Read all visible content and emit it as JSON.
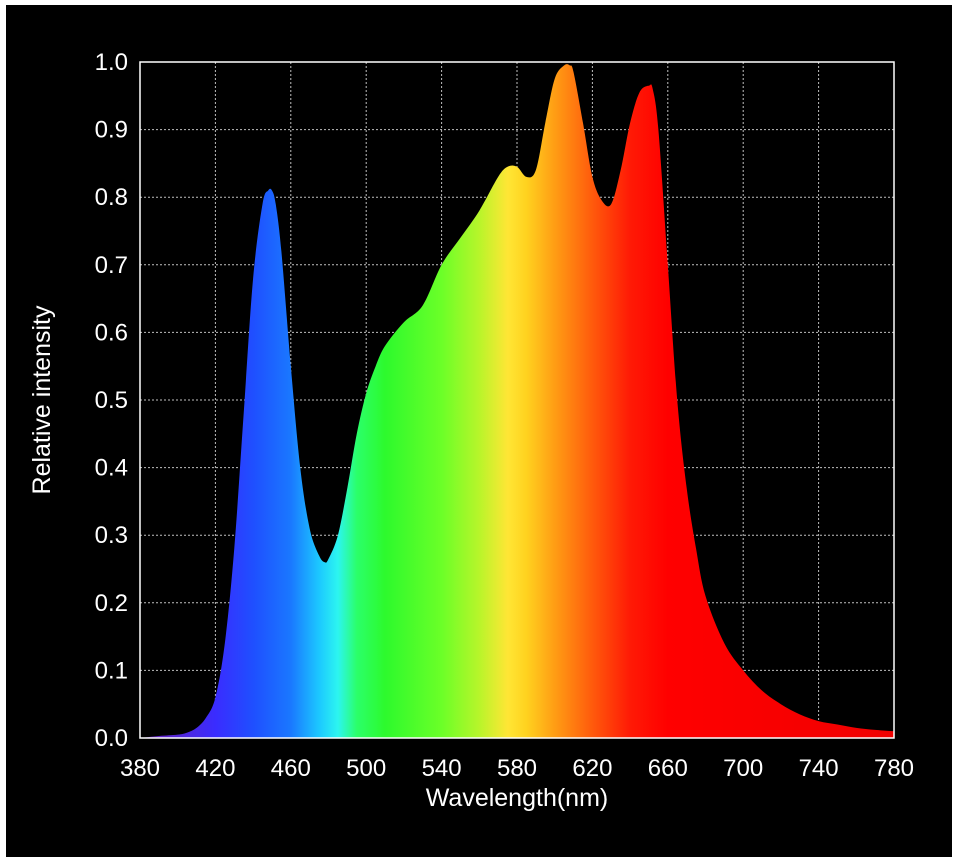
{
  "chart_data": {
    "type": "area",
    "xlabel": "Wavelength(nm)",
    "ylabel": "Relative intensity",
    "xlim": [
      380,
      780
    ],
    "ylim": [
      0,
      1.0
    ],
    "grid": true,
    "x_ticks": [
      "380",
      "420",
      "460",
      "500",
      "540",
      "580",
      "620",
      "660",
      "700",
      "740",
      "780"
    ],
    "y_ticks": [
      "0.0",
      "0.1",
      "0.2",
      "0.3",
      "0.4",
      "0.5",
      "0.6",
      "0.7",
      "0.8",
      "0.9",
      "1.0"
    ],
    "series": [
      {
        "x": [
          380,
          390,
          400,
          405,
          410,
          415,
          420,
          425,
          430,
          435,
          440,
          445,
          448,
          450,
          452,
          455,
          460,
          465,
          470,
          475,
          478,
          480,
          485,
          490,
          495,
          500,
          505,
          510,
          520,
          530,
          540,
          550,
          560,
          570,
          575,
          580,
          585,
          590,
          595,
          600,
          605,
          608,
          610,
          615,
          620,
          625,
          630,
          635,
          640,
          645,
          650,
          652,
          655,
          660,
          665,
          670,
          675,
          680,
          690,
          700,
          710,
          720,
          730,
          740,
          750,
          760,
          770,
          780
        ],
        "values": [
          0.0,
          0.003,
          0.005,
          0.008,
          0.015,
          0.03,
          0.06,
          0.14,
          0.28,
          0.48,
          0.68,
          0.79,
          0.81,
          0.81,
          0.79,
          0.72,
          0.55,
          0.4,
          0.31,
          0.27,
          0.26,
          0.265,
          0.3,
          0.37,
          0.45,
          0.51,
          0.55,
          0.58,
          0.615,
          0.64,
          0.7,
          0.74,
          0.78,
          0.83,
          0.845,
          0.845,
          0.83,
          0.84,
          0.91,
          0.975,
          0.995,
          0.995,
          0.985,
          0.91,
          0.83,
          0.795,
          0.79,
          0.84,
          0.91,
          0.955,
          0.965,
          0.96,
          0.9,
          0.7,
          0.5,
          0.37,
          0.28,
          0.21,
          0.14,
          0.1,
          0.07,
          0.05,
          0.035,
          0.025,
          0.02,
          0.015,
          0.012,
          0.01
        ]
      }
    ],
    "gradient_stops": [
      {
        "x": 380,
        "color": "#6a1fb0"
      },
      {
        "x": 420,
        "color": "#3a2cff"
      },
      {
        "x": 440,
        "color": "#1f4fff"
      },
      {
        "x": 460,
        "color": "#1a78ff"
      },
      {
        "x": 475,
        "color": "#1cc8ff"
      },
      {
        "x": 485,
        "color": "#2cf5f0"
      },
      {
        "x": 495,
        "color": "#2bff6a"
      },
      {
        "x": 510,
        "color": "#2dfa2d"
      },
      {
        "x": 540,
        "color": "#6bff28"
      },
      {
        "x": 560,
        "color": "#b8f52a"
      },
      {
        "x": 575,
        "color": "#ffe635"
      },
      {
        "x": 585,
        "color": "#ffd21f"
      },
      {
        "x": 600,
        "color": "#ff9d14"
      },
      {
        "x": 620,
        "color": "#ff5a0c"
      },
      {
        "x": 640,
        "color": "#ff1a05"
      },
      {
        "x": 660,
        "color": "#ff0000"
      },
      {
        "x": 780,
        "color": "#f00000"
      }
    ],
    "colors": {
      "background": "#000000",
      "grid": "#bfbfbf",
      "axes": "#ffffff",
      "text": "#ffffff"
    }
  }
}
